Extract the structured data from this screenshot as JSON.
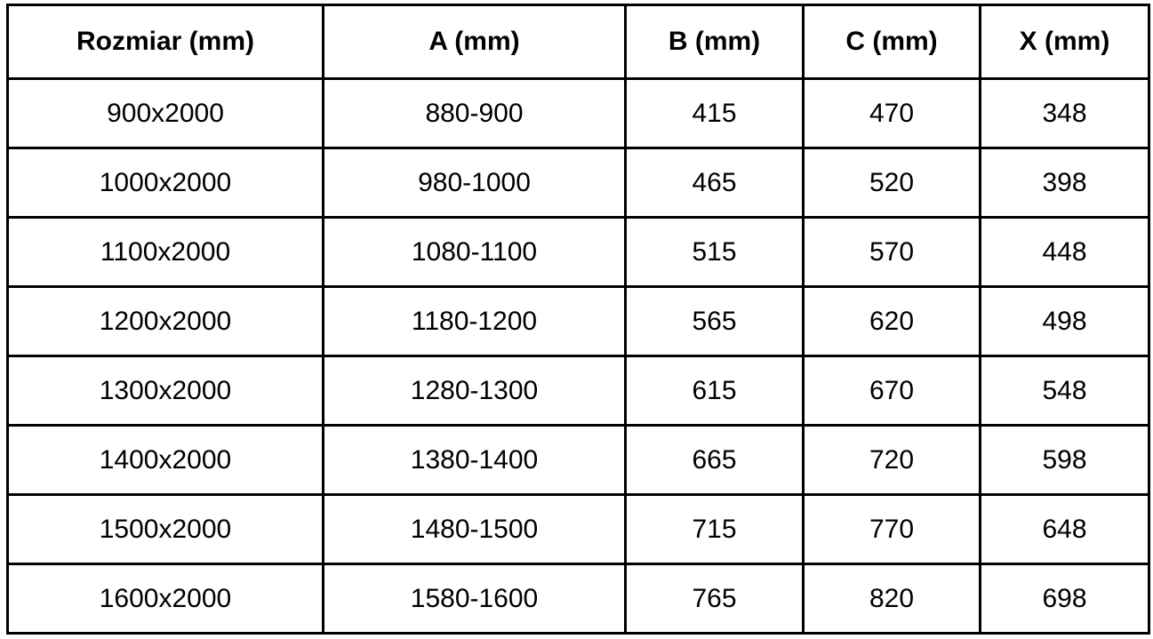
{
  "table": {
    "headers": [
      "Rozmiar (mm)",
      "A (mm)",
      "B (mm)",
      "C (mm)",
      "X (mm)"
    ],
    "rows": [
      [
        "900x2000",
        "880-900",
        "415",
        "470",
        "348"
      ],
      [
        "1000x2000",
        "980-1000",
        "465",
        "520",
        "398"
      ],
      [
        "1100x2000",
        "1080-1100",
        "515",
        "570",
        "448"
      ],
      [
        "1200x2000",
        "1180-1200",
        "565",
        "620",
        "498"
      ],
      [
        "1300x2000",
        "1280-1300",
        "615",
        "670",
        "548"
      ],
      [
        "1400x2000",
        "1380-1400",
        "665",
        "720",
        "598"
      ],
      [
        "1500x2000",
        "1480-1500",
        "715",
        "770",
        "648"
      ],
      [
        "1600x2000",
        "1580-1600",
        "765",
        "820",
        "698"
      ]
    ],
    "colors": {
      "border": "#000000",
      "text": "#000000",
      "background": "#ffffff"
    }
  }
}
